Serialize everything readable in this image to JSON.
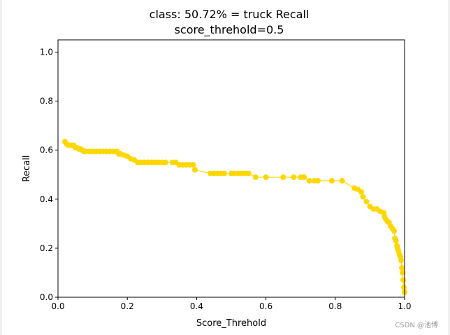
{
  "chart_data": {
    "type": "line",
    "title_line1": "class: 50.72% = truck Recall",
    "title_line2": "score_threhold=0.5",
    "xlabel": "Score_Threhold",
    "ylabel": "Recall",
    "xlim": [
      0,
      1
    ],
    "ylim": [
      0,
      1.05
    ],
    "xticks": [
      0.0,
      0.2,
      0.4,
      0.6,
      0.8,
      1.0
    ],
    "xtick_labels": [
      "0.0",
      "0.2",
      "0.4",
      "0.6",
      "0.8",
      "1.0"
    ],
    "yticks": [
      0.0,
      0.2,
      0.4,
      0.6,
      0.8,
      1.0
    ],
    "ytick_labels": [
      "0.0",
      "0.2",
      "0.4",
      "0.6",
      "0.8",
      "1.0"
    ],
    "grid": false,
    "line_color": "#FFD700",
    "marker": "circle",
    "x": [
      0.02,
      0.025,
      0.03,
      0.035,
      0.04,
      0.045,
      0.05,
      0.055,
      0.06,
      0.065,
      0.07,
      0.075,
      0.08,
      0.09,
      0.1,
      0.11,
      0.12,
      0.13,
      0.14,
      0.15,
      0.16,
      0.17,
      0.175,
      0.18,
      0.19,
      0.2,
      0.21,
      0.22,
      0.23,
      0.24,
      0.25,
      0.26,
      0.27,
      0.28,
      0.29,
      0.3,
      0.31,
      0.33,
      0.34,
      0.35,
      0.36,
      0.37,
      0.38,
      0.39,
      0.395,
      0.44,
      0.45,
      0.46,
      0.47,
      0.48,
      0.5,
      0.51,
      0.52,
      0.53,
      0.54,
      0.55,
      0.57,
      0.6,
      0.65,
      0.68,
      0.7,
      0.71,
      0.725,
      0.74,
      0.75,
      0.79,
      0.82,
      0.855,
      0.865,
      0.875,
      0.88,
      0.89,
      0.9,
      0.91,
      0.92,
      0.93,
      0.94,
      0.942,
      0.945,
      0.95,
      0.955,
      0.96,
      0.965,
      0.97,
      0.972,
      0.975,
      0.978,
      0.98,
      0.982,
      0.985,
      0.988,
      0.99,
      0.992,
      0.994,
      0.996,
      0.998,
      1.0
    ],
    "y": [
      0.635,
      0.625,
      0.62,
      0.62,
      0.62,
      0.62,
      0.61,
      0.61,
      0.605,
      0.605,
      0.6,
      0.595,
      0.595,
      0.595,
      0.595,
      0.595,
      0.595,
      0.595,
      0.595,
      0.595,
      0.595,
      0.595,
      0.585,
      0.585,
      0.58,
      0.575,
      0.565,
      0.56,
      0.55,
      0.55,
      0.55,
      0.55,
      0.55,
      0.55,
      0.55,
      0.55,
      0.55,
      0.55,
      0.55,
      0.54,
      0.54,
      0.54,
      0.54,
      0.54,
      0.52,
      0.505,
      0.505,
      0.505,
      0.505,
      0.505,
      0.505,
      0.505,
      0.505,
      0.505,
      0.505,
      0.505,
      0.49,
      0.49,
      0.49,
      0.49,
      0.49,
      0.49,
      0.475,
      0.475,
      0.475,
      0.475,
      0.475,
      0.445,
      0.44,
      0.43,
      0.41,
      0.39,
      0.37,
      0.36,
      0.36,
      0.35,
      0.345,
      0.33,
      0.32,
      0.31,
      0.305,
      0.29,
      0.28,
      0.27,
      0.24,
      0.23,
      0.21,
      0.2,
      0.19,
      0.175,
      0.165,
      0.15,
      0.12,
      0.1,
      0.07,
      0.04,
      0.02
    ]
  },
  "watermark": "CSDN @池博"
}
